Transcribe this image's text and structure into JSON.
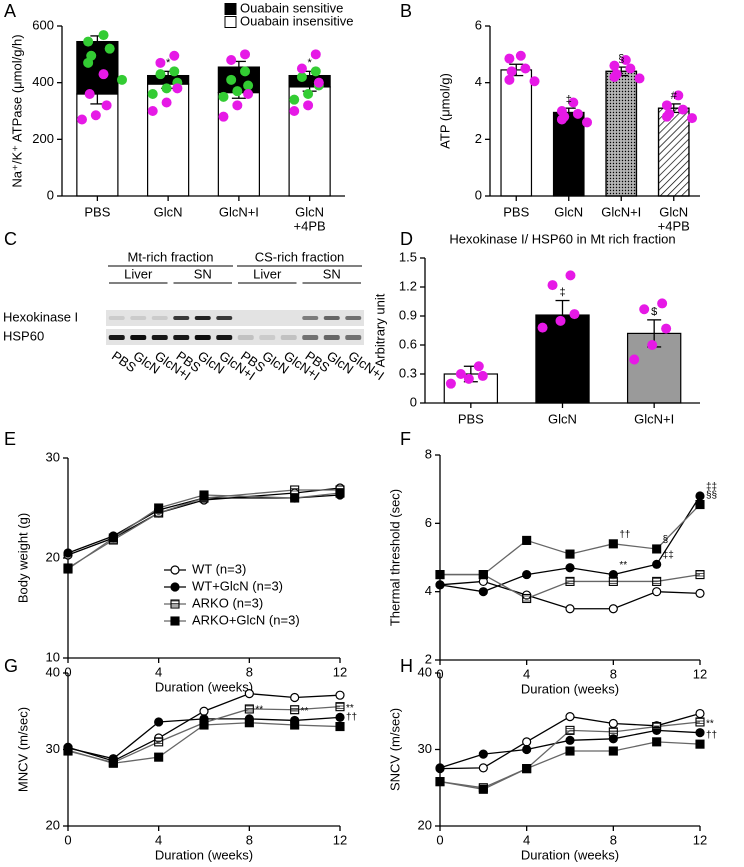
{
  "chart_data": [
    {
      "panel": "A",
      "type": "bar",
      "stacked": true,
      "ylabel": "Na⁺/K⁺ ATPase (μmol/g/h)",
      "categories": [
        "PBS",
        "GlcN",
        "GlcN+I",
        [
          "GlcN",
          "+4PB"
        ]
      ],
      "series": [
        {
          "name": "Ouabain insensitive",
          "color": "#ffffff",
          "values": [
            360,
            395,
            365,
            385
          ],
          "errors": [
            35,
            15,
            20,
            15
          ]
        },
        {
          "name": "Ouabain sensitive",
          "color": "#000000",
          "values": [
            185,
            30,
            90,
            40
          ],
          "errors": [
            20,
            15,
            20,
            15
          ]
        }
      ],
      "annotations": [
        null,
        "*",
        null,
        "*"
      ],
      "points": [
        {
          "color": "#33cc33",
          "values": [
            [
              568,
              545,
              520,
              495,
              470,
              410
            ],
            [
              440,
              430,
              400,
              380,
              360
            ],
            [
              440,
              410,
              390,
              370,
              350
            ],
            [
              440,
              420,
              390,
              360,
              340
            ]
          ]
        },
        {
          "color": "#e619e6",
          "values": [
            [
              430,
              360,
              320,
              285,
              270
            ],
            [
              495,
              470,
              380,
              330,
              300
            ],
            [
              500,
              480,
              360,
              320,
              280
            ],
            [
              500,
              450,
              400,
              320,
              300
            ]
          ]
        }
      ],
      "ylim": [
        0,
        600
      ],
      "yticks": [
        0,
        200,
        400,
        600
      ],
      "legend": "top-right"
    },
    {
      "panel": "B",
      "type": "bar",
      "ylabel": "ATP (μmol/g)",
      "categories": [
        "PBS",
        "GlcN",
        "GlcN+I",
        [
          "GlcN",
          "+4PB"
        ]
      ],
      "values": [
        4.45,
        2.95,
        4.4,
        3.1
      ],
      "errors": [
        0.2,
        0.15,
        0.15,
        0.15
      ],
      "colors": [
        "#ffffff",
        "#000000",
        "#b5b5b5",
        "#ffffff"
      ],
      "patterns": [
        null,
        null,
        "dots",
        "diagonal"
      ],
      "annotations": [
        null,
        "‡",
        "§",
        "#"
      ],
      "points": [
        {
          "color": "#e619e6",
          "values": [
            [
              4.95,
              4.85,
              4.5,
              4.4,
              4.1,
              4.05
            ],
            [
              3.3,
              3.0,
              2.9,
              2.8,
              2.7,
              2.6
            ],
            [
              4.8,
              4.6,
              4.5,
              4.3,
              4.2,
              4.15
            ],
            [
              3.55,
              3.2,
              3.05,
              2.9,
              2.8,
              2.75
            ]
          ]
        }
      ],
      "ylim": [
        0,
        6
      ],
      "yticks": [
        0,
        2,
        4,
        6
      ]
    },
    {
      "panel": "D",
      "type": "bar",
      "title": "Hexokinase I/ HSP60 in Mt rich fraction",
      "ylabel": "Arbitrary unit",
      "categories": [
        "PBS",
        "GlcN",
        "GlcN+I"
      ],
      "values": [
        0.3,
        0.91,
        0.72
      ],
      "errors": [
        0.08,
        0.15,
        0.14
      ],
      "colors": [
        "#ffffff",
        "#000000",
        "#9a9a9a"
      ],
      "patterns": [
        null,
        null,
        null
      ],
      "annotations": [
        null,
        "‡",
        "$"
      ],
      "points": [
        {
          "color": "#e619e6",
          "values": [
            [
              0.38,
              0.3,
              0.28,
              0.25,
              0.2
            ],
            [
              1.32,
              1.22,
              0.92,
              0.85,
              0.78
            ],
            [
              1.03,
              0.97,
              0.77,
              0.6,
              0.45
            ]
          ]
        }
      ],
      "ylim": [
        0,
        1.5
      ],
      "yticks": [
        0,
        0.3,
        0.6,
        0.9,
        1.2,
        1.5
      ]
    },
    {
      "panel": "E",
      "type": "line",
      "ylabel": "Body weight (g)",
      "xlabel": "Duration (weeks)",
      "x": [
        0,
        2,
        4,
        6,
        10,
        12
      ],
      "series": [
        {
          "name": "WT (n=3)",
          "color": "#000000",
          "marker": "open-circle",
          "values": [
            20.3,
            22,
            24.5,
            25.8,
            26.5,
            27
          ]
        },
        {
          "name": "WT+GlcN (n=3)",
          "color": "#000000",
          "marker": "filled-circle",
          "values": [
            20.5,
            22.2,
            24.8,
            26,
            26,
            26.3
          ]
        },
        {
          "name": "ARKO (n=3)",
          "color": "#666666",
          "marker": "hatched-square",
          "values": [
            19,
            21.8,
            24.5,
            26,
            26.8,
            26.8
          ]
        },
        {
          "name": "ARKO+GlcN (n=3)",
          "color": "#666666",
          "marker": "filled-square",
          "values": [
            18.9,
            22,
            25,
            26.3,
            26,
            26.5
          ]
        }
      ],
      "xlim": [
        0,
        12
      ],
      "xticks": [
        0,
        4,
        8,
        12
      ],
      "ylim": [
        10,
        30
      ],
      "yticks": [
        10,
        20,
        30
      ],
      "legend": "bottom-right"
    },
    {
      "panel": "F",
      "type": "line",
      "ylabel": "Thermal threshold (sec)",
      "xlabel": "Duration (weeks)",
      "x": [
        0,
        2,
        4,
        6,
        8,
        10,
        12
      ],
      "series": [
        {
          "color": "#000000",
          "marker": "open-circle",
          "values": [
            4.2,
            4.3,
            3.9,
            3.5,
            3.5,
            4,
            3.95
          ]
        },
        {
          "color": "#000000",
          "marker": "filled-circle",
          "values": [
            4.2,
            4.0,
            4.5,
            4.7,
            4.5,
            4.8,
            6.8
          ],
          "annotations": [
            null,
            null,
            null,
            null,
            "**",
            "‡‡",
            "‡‡"
          ]
        },
        {
          "color": "#666666",
          "marker": "hatched-square",
          "values": [
            4.5,
            4.5,
            3.8,
            4.3,
            4.3,
            4.3,
            4.5
          ]
        },
        {
          "color": "#666666",
          "marker": "filled-square",
          "values": [
            4.5,
            4.5,
            5.5,
            5.1,
            5.4,
            5.25,
            6.55
          ],
          "annotations": [
            null,
            null,
            null,
            null,
            "††",
            "§",
            "§§"
          ]
        }
      ],
      "xlim": [
        0,
        12
      ],
      "xticks": [
        0,
        4,
        8,
        12
      ],
      "ylim": [
        2,
        8
      ],
      "yticks": [
        2,
        4,
        6,
        8
      ]
    },
    {
      "panel": "G",
      "type": "line",
      "ylabel": "MNCV (m/sec)",
      "xlabel": "Duration (weeks)",
      "x": [
        0,
        2,
        4,
        6,
        8,
        10,
        12
      ],
      "series": [
        {
          "color": "#000000",
          "marker": "open-circle",
          "values": [
            30.3,
            28.5,
            31.5,
            35,
            37.3,
            36.8,
            37.1
          ]
        },
        {
          "color": "#000000",
          "marker": "filled-circle",
          "values": [
            30.2,
            28.8,
            33.6,
            34,
            34,
            33.8,
            34.2
          ],
          "annotations": [
            null,
            null,
            null,
            null,
            "**",
            "**",
            "**"
          ]
        },
        {
          "color": "#666666",
          "marker": "hatched-square",
          "values": [
            29.8,
            28.3,
            31,
            33.5,
            35.3,
            35.2,
            35.6
          ]
        },
        {
          "color": "#666666",
          "marker": "filled-square",
          "values": [
            29.9,
            28.2,
            29,
            33.2,
            33.5,
            33.2,
            33
          ],
          "annotations": [
            null,
            null,
            null,
            null,
            null,
            null,
            "††"
          ]
        }
      ],
      "xlim": [
        0,
        12
      ],
      "xticks": [
        0,
        4,
        8,
        12
      ],
      "ylim": [
        20,
        40
      ],
      "yticks": [
        20,
        30,
        40
      ]
    },
    {
      "panel": "H",
      "type": "line",
      "ylabel": "SNCV (m/sec)",
      "xlabel": "Duration (weeks)",
      "x": [
        0,
        2,
        4,
        6,
        8,
        10,
        12
      ],
      "series": [
        {
          "color": "#000000",
          "marker": "open-circle",
          "values": [
            27.5,
            27.6,
            31,
            34.3,
            33.4,
            33.1,
            34.7
          ]
        },
        {
          "color": "#000000",
          "marker": "filled-circle",
          "values": [
            27.6,
            29.4,
            30,
            31.2,
            31.4,
            32.5,
            32.2
          ],
          "annotations": [
            null,
            null,
            null,
            null,
            null,
            null,
            "**"
          ]
        },
        {
          "color": "#666666",
          "marker": "hatched-square",
          "values": [
            25.8,
            25,
            27.5,
            32.5,
            32.3,
            33,
            33.6
          ]
        },
        {
          "color": "#666666",
          "marker": "filled-square",
          "values": [
            25.8,
            24.8,
            27.5,
            29.8,
            29.8,
            31,
            30.7
          ],
          "annotations": [
            null,
            null,
            null,
            null,
            null,
            null,
            "††"
          ]
        }
      ],
      "xlim": [
        0,
        12
      ],
      "xticks": [
        0,
        4,
        8,
        12
      ],
      "ylim": [
        20,
        40
      ],
      "yticks": [
        20,
        30,
        40
      ]
    }
  ],
  "blot": {
    "panel": "C",
    "fractions": [
      {
        "label": "Mt-rich fraction",
        "groups": [
          "Liver",
          "SN"
        ]
      },
      {
        "label": "CS-rich fraction",
        "groups": [
          "Liver",
          "SN"
        ]
      }
    ],
    "rows": [
      "Hexokinase I",
      "HSP60"
    ],
    "lanes": [
      "PBS",
      "GlcN",
      "GlcN+I"
    ]
  }
}
